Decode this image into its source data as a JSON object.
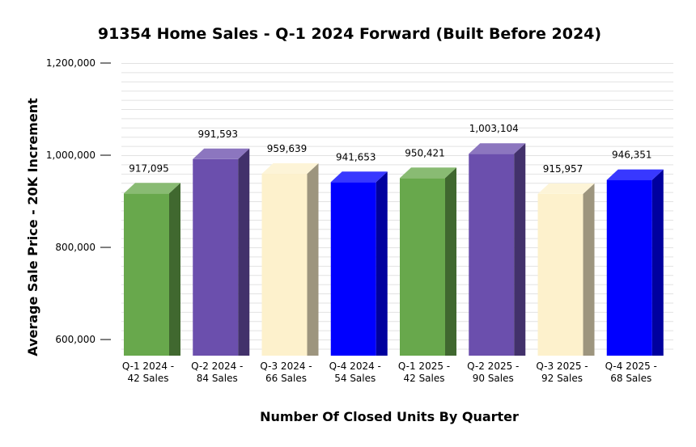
{
  "chart_data": {
    "type": "bar",
    "title": "91354 Home Sales - Q-1 2024 Forward (Built Before 2024)",
    "xlabel": "Number Of Closed Units By Quarter",
    "ylabel": "Average Sale Price - 20K Increment",
    "ylim": [
      565000,
      1200000
    ],
    "yticks": [
      600000,
      800000,
      1000000,
      1200000
    ],
    "ytick_labels": [
      "600,000",
      "800,000",
      "1,000,000",
      "1,200,000"
    ],
    "grid": true,
    "categories": [
      [
        "Q-1 2024 -",
        "42 Sales"
      ],
      [
        "Q-2 2024 -",
        "84 Sales"
      ],
      [
        "Q-3 2024 -",
        "66 Sales"
      ],
      [
        "Q-4 2024 -",
        "54 Sales"
      ],
      [
        "Q-1 2025 -",
        "42 Sales"
      ],
      [
        "Q-2 2025 -",
        "90 Sales"
      ],
      [
        "Q-3 2025 -",
        "92 Sales"
      ],
      [
        "Q-4 2025 -",
        "68 Sales"
      ]
    ],
    "values": [
      917095,
      991593,
      959639,
      941653,
      950421,
      1003104,
      915957,
      946351
    ],
    "value_labels": [
      "917,095",
      "991,593",
      "959,639",
      "941,653",
      "950,421",
      "1,003,104",
      "915,957",
      "946,351"
    ],
    "colors": [
      "#68a84c",
      "#6b4fad",
      "#fdf1cc",
      "#0000ff",
      "#68a84c",
      "#6b4fad",
      "#fdf1cc",
      "#0000ff"
    ]
  }
}
